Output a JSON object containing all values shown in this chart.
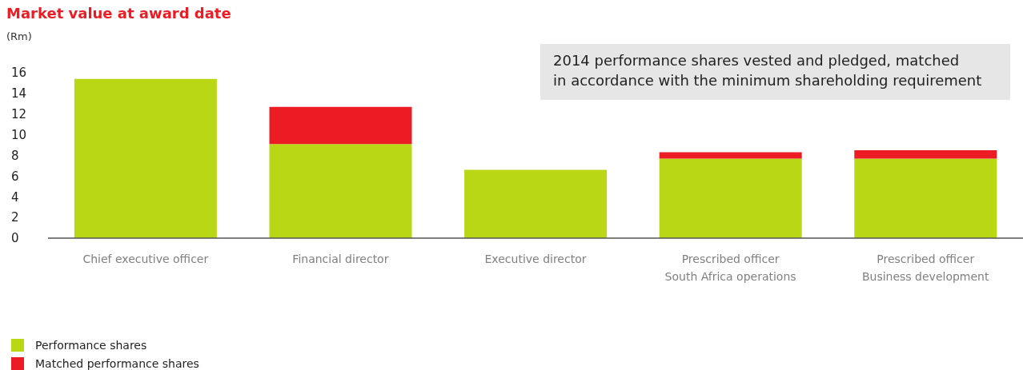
{
  "chart_data": {
    "type": "bar",
    "title": "Market value at award date",
    "ylabel": "(Rm)",
    "stacked": true,
    "categories": [
      "Chief executive officer",
      "Financial director",
      "Executive director",
      "Prescribed officer\nSouth Africa operations",
      "Prescribed officer\nBusiness development"
    ],
    "series": [
      {
        "name": "Performance shares",
        "color": "#bad715",
        "values": [
          15.4,
          9.1,
          6.6,
          7.7,
          7.7
        ]
      },
      {
        "name": "Matched performance shares",
        "color": "#ec1c24",
        "values": [
          null,
          3.6,
          null,
          0.6,
          0.8
        ]
      }
    ],
    "ylim": [
      0,
      16
    ],
    "yticks": [
      0,
      2,
      4,
      6,
      8,
      10,
      12,
      14,
      16
    ],
    "grid": false,
    "legend": "bottom left",
    "annotations": [
      "2014 performance shares vested and pledged, matched\nin accordance with the minimum shareholding requirement"
    ]
  }
}
